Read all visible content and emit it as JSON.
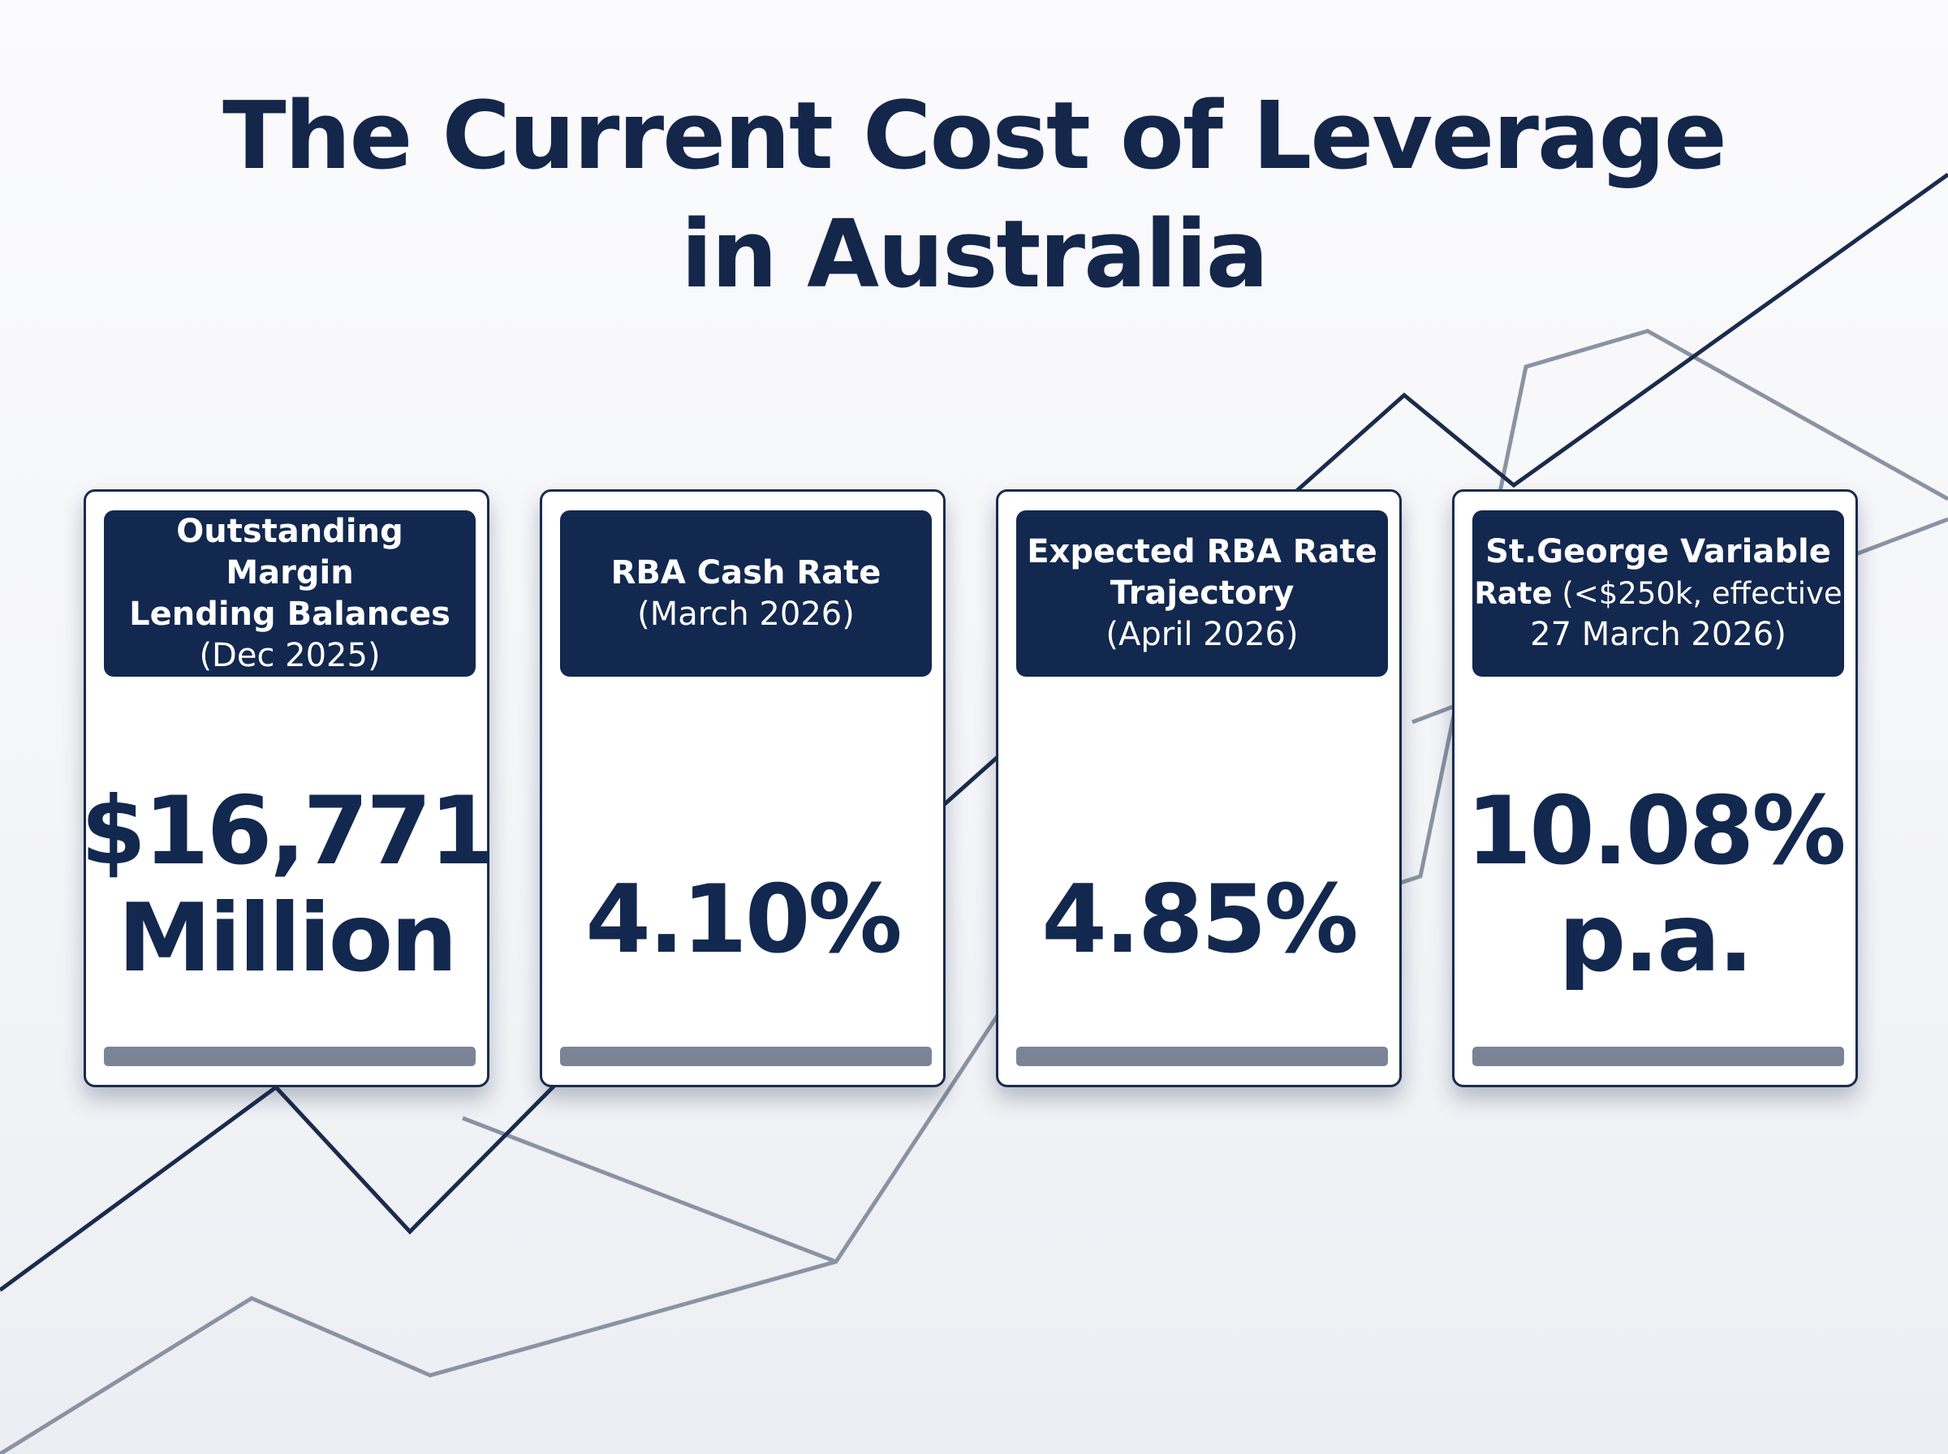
{
  "title": {
    "line1": "The Current Cost of Leverage",
    "line2": "in Australia"
  },
  "cards": [
    {
      "header_bold_1": "Outstanding Margin",
      "header_bold_2": "Lending Balances",
      "header_regular": "(Dec 2025)",
      "value_line1": "$16,771",
      "value_line2": "Million"
    },
    {
      "header_bold_1": "RBA Cash Rate",
      "header_regular": "(March 2026)",
      "value_line1": "4.10%"
    },
    {
      "header_bold_1": "Expected RBA Rate",
      "header_bold_2": "Trajectory",
      "header_regular": "(April 2026)",
      "value_line1": "4.85%"
    },
    {
      "header_bold_1": "St.George Variable",
      "header_bold_2": "Rate",
      "header_regular_inline": " (<$250k, effective",
      "header_regular": "27 March 2026)",
      "value_line1": "10.08%",
      "value_line2": "p.a."
    }
  ],
  "colors": {
    "navy": "#13284f",
    "bar_gray": "#7b8497",
    "line_dark": "#1a2b4d",
    "line_light": "#8a93a3"
  }
}
